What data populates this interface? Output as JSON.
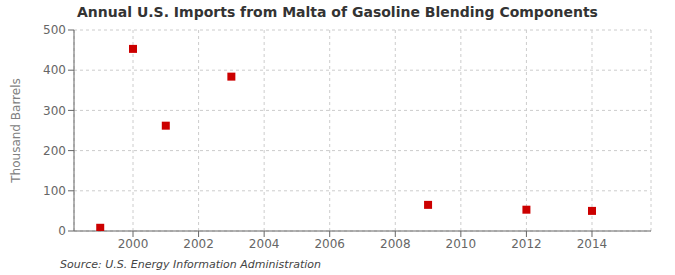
{
  "chart_data": {
    "type": "scatter",
    "title": "Annual U.S. Imports from Malta of Gasoline Blending Components",
    "ylabel": "Thousand Barrels",
    "annotations": [
      "Source: U.S. Energy Information Administration"
    ],
    "x": [
      1999,
      2000,
      2001,
      2003,
      2009,
      2012,
      2014
    ],
    "values": [
      8,
      453,
      262,
      384,
      65,
      53,
      50
    ],
    "color": "#cc0000",
    "marker": "square",
    "xlim": [
      1998.2,
      2015.8
    ],
    "ylim": [
      0,
      500
    ],
    "xticks": [
      2000,
      2002,
      2004,
      2006,
      2008,
      2010,
      2012,
      2014
    ],
    "yticks": [
      0,
      100,
      200,
      300,
      400,
      500
    ],
    "grid": true
  }
}
